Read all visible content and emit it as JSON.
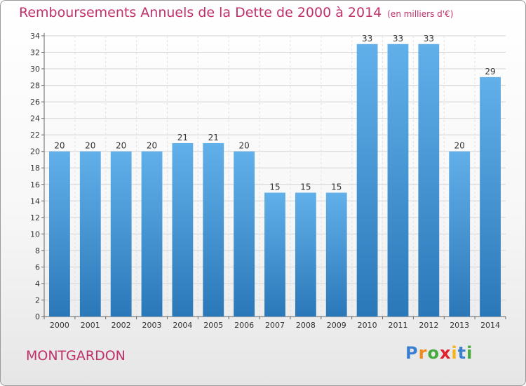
{
  "header": {
    "title": "Remboursements Annuels de la Dette de 2000 à 2014",
    "subtitle": "(en milliers d'€)"
  },
  "footer": {
    "commune": "MONTGARDON",
    "logo": [
      "P",
      "r",
      "o",
      "x",
      "i",
      "t",
      "i"
    ]
  },
  "colors": {
    "title": "#c0306a",
    "bar_top": "#62b0ea",
    "bar_bottom": "#2a78b8",
    "logo": [
      "#3a7fd0",
      "#f28a1a",
      "#45a93c",
      "#e0202a",
      "#f6b31a",
      "#3a7fd0",
      "#45a93c"
    ]
  },
  "chart_data": {
    "type": "bar",
    "categories": [
      "2000",
      "2001",
      "2002",
      "2003",
      "2004",
      "2005",
      "2006",
      "2007",
      "2008",
      "2009",
      "2010",
      "2011",
      "2012",
      "2013",
      "2014"
    ],
    "values": [
      20,
      20,
      20,
      20,
      21,
      21,
      20,
      15,
      15,
      15,
      33,
      33,
      33,
      20,
      29
    ],
    "title": "Remboursements Annuels de la Dette de 2000 à 2014",
    "ylim": [
      0,
      34
    ],
    "yticks": [
      0,
      2,
      4,
      6,
      8,
      10,
      12,
      14,
      16,
      18,
      20,
      22,
      24,
      26,
      28,
      30,
      32,
      34
    ],
    "grid": true,
    "legend": "none"
  }
}
